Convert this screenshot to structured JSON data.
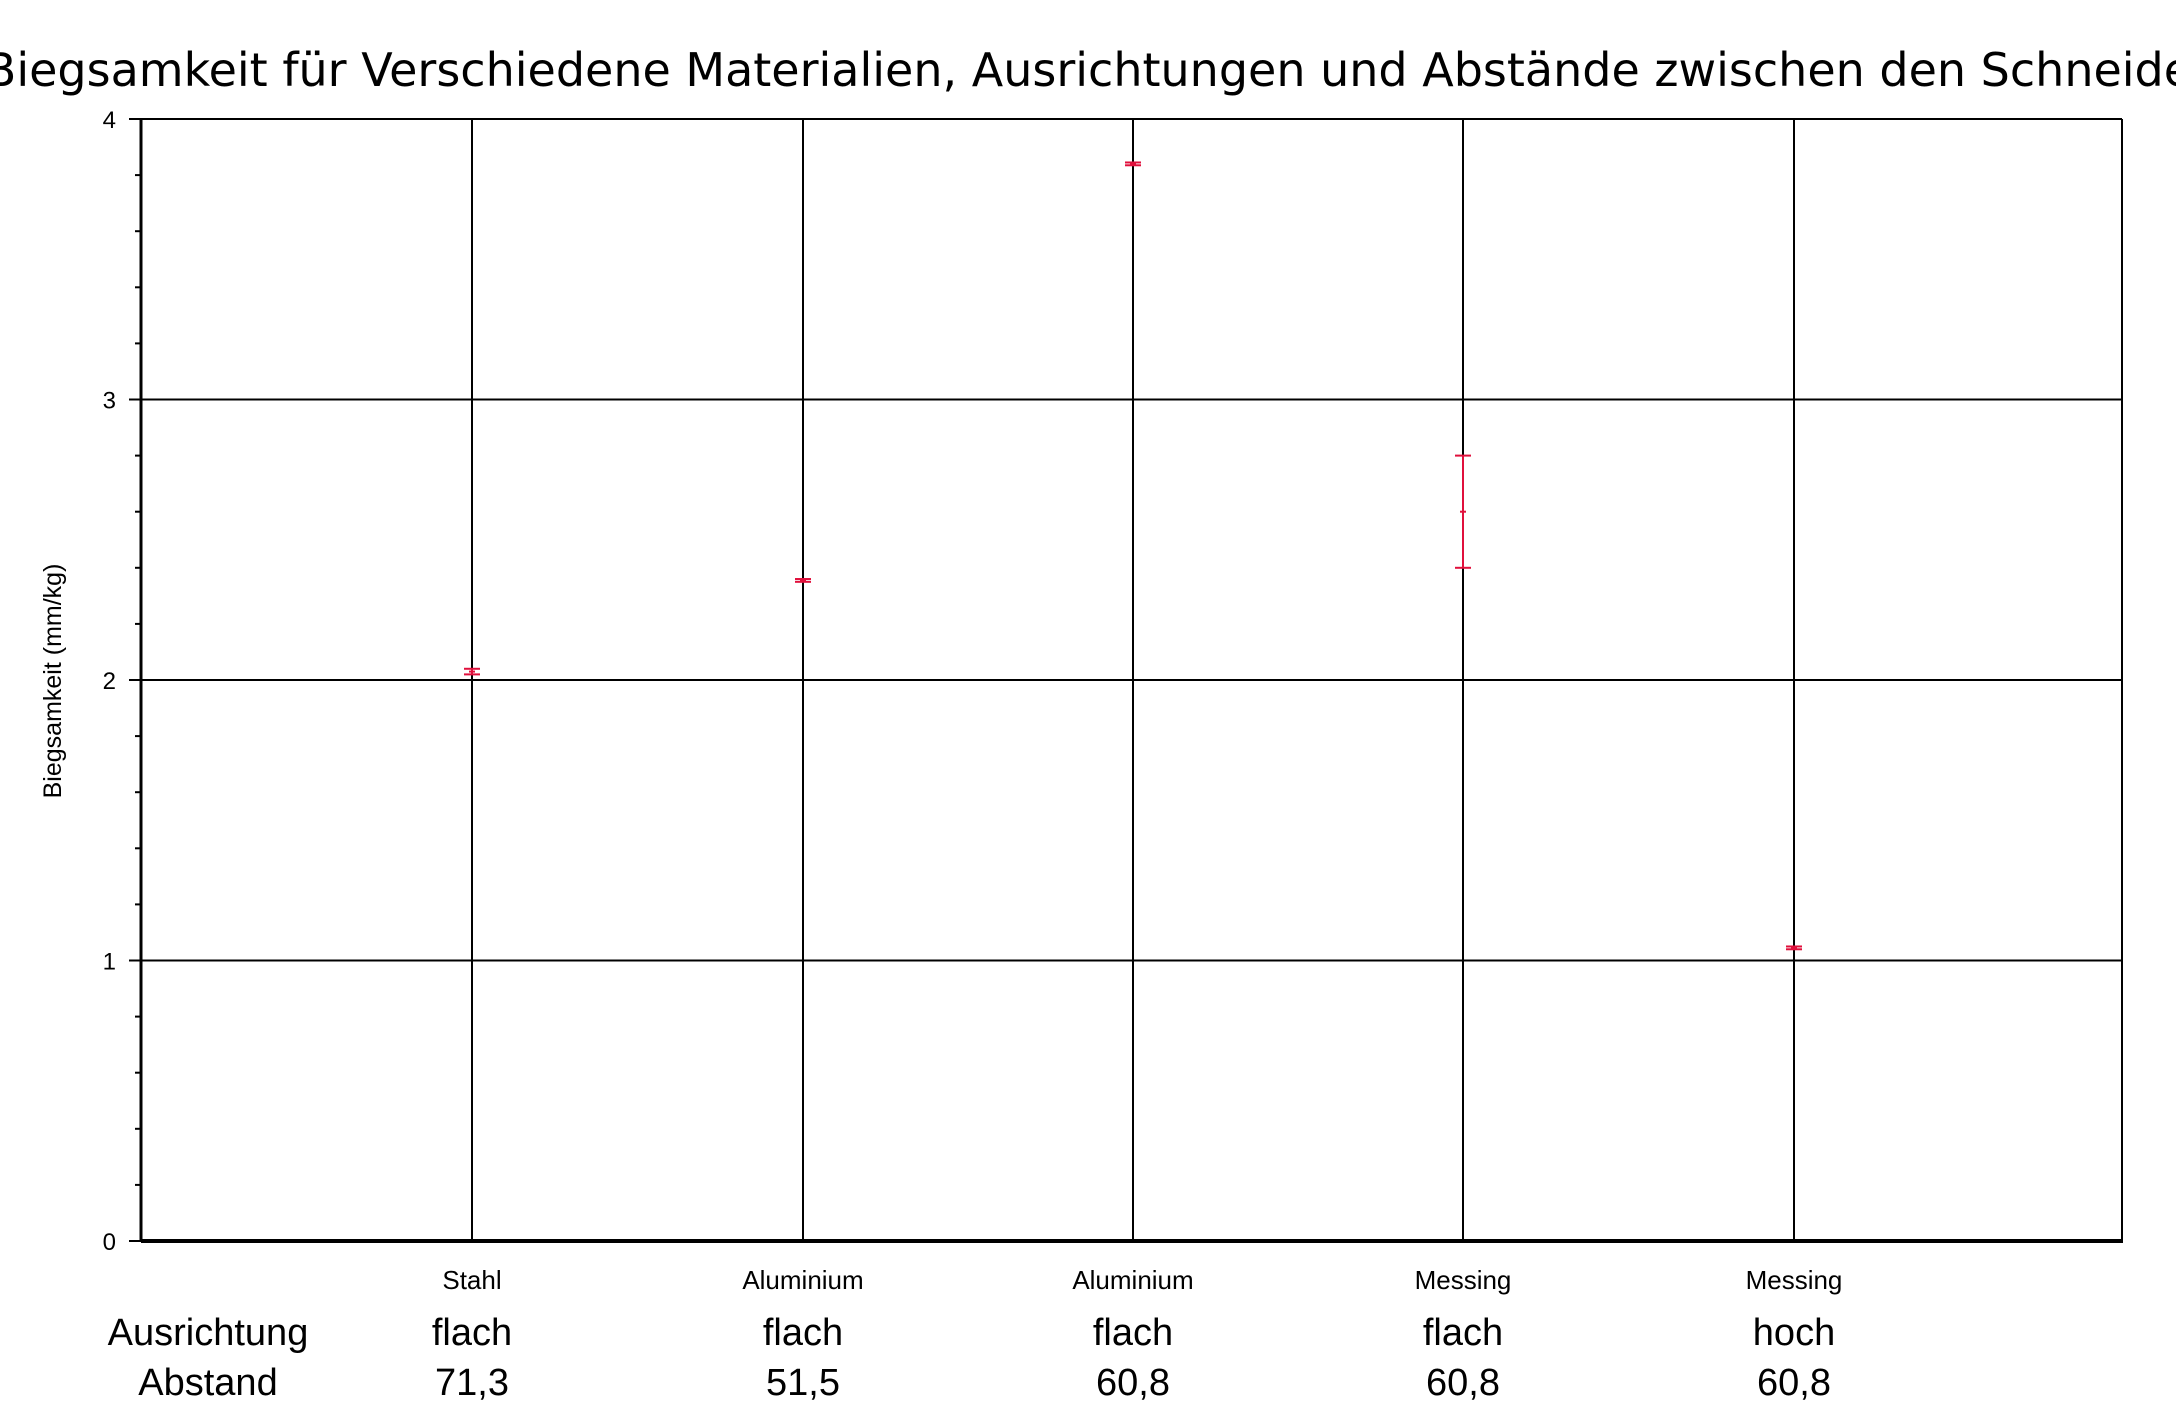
{
  "chart_data": {
    "type": "scatter",
    "title": "Biegsamkeit für Verschiedene Materialien, Ausrichtungen und Abstände zwischen den Schneiden",
    "ylabel": "Biegsamkeit (mm/kg)",
    "ylim": [
      0,
      4
    ],
    "yticks": [
      "0",
      "1",
      "2",
      "3",
      "4"
    ],
    "grid": true,
    "row_labels": {
      "ausrichtung": "Ausrichtung",
      "abstand": "Abstand"
    },
    "categories": [
      {
        "material": "Stahl",
        "ausrichtung": "flach",
        "abstand": "71,3"
      },
      {
        "material": "Aluminium",
        "ausrichtung": "flach",
        "abstand": "51,5"
      },
      {
        "material": "Aluminium",
        "ausrichtung": "flach",
        "abstand": "60,8"
      },
      {
        "material": "Messing",
        "ausrichtung": "flach",
        "abstand": "60,8"
      },
      {
        "material": "Messing",
        "ausrichtung": "hoch",
        "abstand": "60,8"
      }
    ],
    "series": [
      {
        "values": [
          2.03,
          2.355,
          3.84,
          2.6,
          1.045
        ],
        "err_low": [
          2.02,
          2.35,
          3.835,
          2.4,
          1.04
        ],
        "err_high": [
          2.04,
          2.36,
          3.845,
          2.8,
          1.05
        ]
      }
    ],
    "colors": {
      "series": "#e0103c",
      "grid": "#000000",
      "axis": "#000000"
    }
  }
}
